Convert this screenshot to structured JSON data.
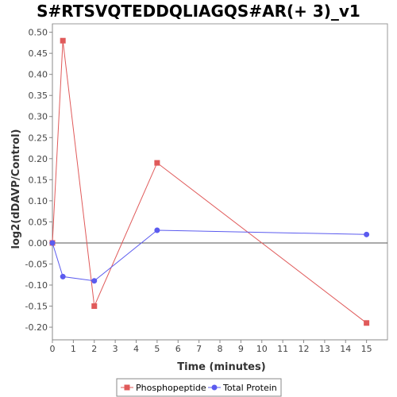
{
  "chart_data": {
    "type": "line",
    "title": "S#RTSVQTEDDQLIAGQS#AR(+ 3)_v1",
    "xlabel": "Time (minutes)",
    "ylabel": "log2(dDAVP/Control)",
    "xlim": [
      0,
      16
    ],
    "ylim": [
      -0.23,
      0.52
    ],
    "xticks": [
      "0",
      "1",
      "2",
      "3",
      "4",
      "5",
      "6",
      "7",
      "8",
      "9",
      "10",
      "11",
      "12",
      "13",
      "14",
      "15"
    ],
    "yticks": [
      "0.50",
      "0.45",
      "0.40",
      "0.35",
      "0.30",
      "0.25",
      "0.20",
      "0.15",
      "0.10",
      "0.05",
      "0.00",
      "-0.05",
      "-0.10",
      "-0.15",
      "-0.20"
    ],
    "x": [
      0,
      0.5,
      2,
      5,
      15
    ],
    "series": [
      {
        "name": "Phosphopeptide",
        "values": [
          0.0,
          0.48,
          -0.15,
          0.19,
          -0.19
        ],
        "color": "#e05a5a",
        "marker": "square"
      },
      {
        "name": "Total Protein",
        "values": [
          0.0,
          -0.08,
          -0.09,
          0.03,
          0.02
        ],
        "color": "#5b5bef",
        "marker": "circle"
      }
    ],
    "zero_line": true,
    "grid": false,
    "legend_position": "bottom"
  }
}
